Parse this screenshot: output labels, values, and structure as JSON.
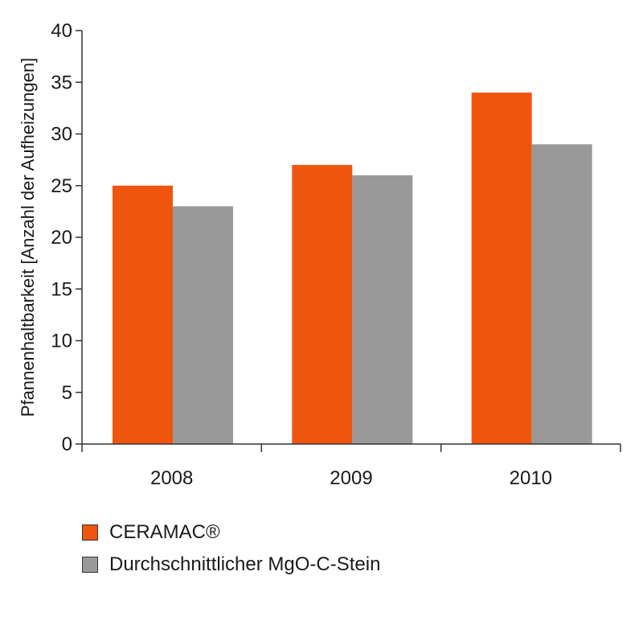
{
  "chart_data": {
    "type": "bar",
    "title": "",
    "xlabel": "",
    "ylabel": "Pfannenhaltbarkeit [Anzahl der Aufheizungen]",
    "ylim": [
      0,
      40
    ],
    "yticks": [
      0,
      5,
      10,
      15,
      20,
      25,
      30,
      35,
      40
    ],
    "categories": [
      "2008",
      "2009",
      "2010"
    ],
    "grid": false,
    "legend_position": "bottom-left",
    "series": [
      {
        "name": "CERAMAC®",
        "color": "#f0550f",
        "values": [
          25,
          27,
          34
        ]
      },
      {
        "name": "Durchschnittlicher MgO-C-Stein",
        "color": "#999999",
        "values": [
          23,
          26,
          29
        ]
      }
    ]
  },
  "legend": {
    "items": [
      {
        "label": "CERAMAC®",
        "color": "#f0550f"
      },
      {
        "label": "Durchschnittlicher MgO-C-Stein",
        "color": "#999999"
      }
    ]
  }
}
